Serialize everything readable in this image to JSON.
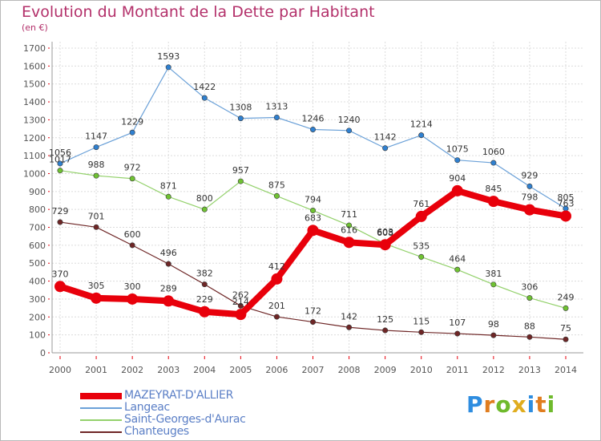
{
  "title": "Evolution du Montant de la Dette par Habitant",
  "unit": "(en €)",
  "logo": {
    "letters": [
      "P",
      "r",
      "o",
      "x",
      "i",
      "t",
      "i"
    ],
    "colors": [
      "#2e8de0",
      "#e07d1f",
      "#6fba2c",
      "#e0ad1f",
      "#2e8de0",
      "#e07d1f",
      "#6fba2c"
    ]
  },
  "chart_data": {
    "type": "line",
    "x": [
      "2000",
      "2001",
      "2002",
      "2003",
      "2004",
      "2005",
      "2006",
      "2007",
      "2008",
      "2009",
      "2010",
      "2011",
      "2012",
      "2013",
      "2014"
    ],
    "ylim": [
      0,
      1700
    ],
    "yticks": [
      "0",
      "100",
      "200",
      "300",
      "400",
      "500",
      "600",
      "700",
      "800",
      "900",
      "1000",
      "1100",
      "1200",
      "1300",
      "1400",
      "1500",
      "1600",
      "1700"
    ],
    "grid": true,
    "series": [
      {
        "name": "MAZEYRAT-D'ALLIER",
        "color": "#e8000b",
        "marker": "#e8000b",
        "values": [
          370,
          305,
          300,
          289,
          229,
          214,
          412,
          683,
          616,
          603,
          761,
          904,
          845,
          798,
          763
        ]
      },
      {
        "name": "Langeac",
        "color": "#6ba1d8",
        "marker": "#2f80d0",
        "values": [
          1056,
          1147,
          1229,
          1593,
          1422,
          1308,
          1313,
          1246,
          1240,
          1142,
          1214,
          1075,
          1060,
          929,
          805
        ]
      },
      {
        "name": "Saint-Georges-d'Aurac",
        "color": "#93d16b",
        "marker": "#6fc232",
        "values": [
          1017,
          988,
          972,
          871,
          800,
          957,
          875,
          794,
          711,
          608,
          535,
          464,
          381,
          306,
          249
        ]
      },
      {
        "name": "Chanteuges",
        "color": "#6e2626",
        "marker": "#6e2626",
        "values": [
          729,
          701,
          600,
          496,
          382,
          262,
          201,
          172,
          142,
          125,
          115,
          107,
          98,
          88,
          75
        ]
      }
    ]
  }
}
